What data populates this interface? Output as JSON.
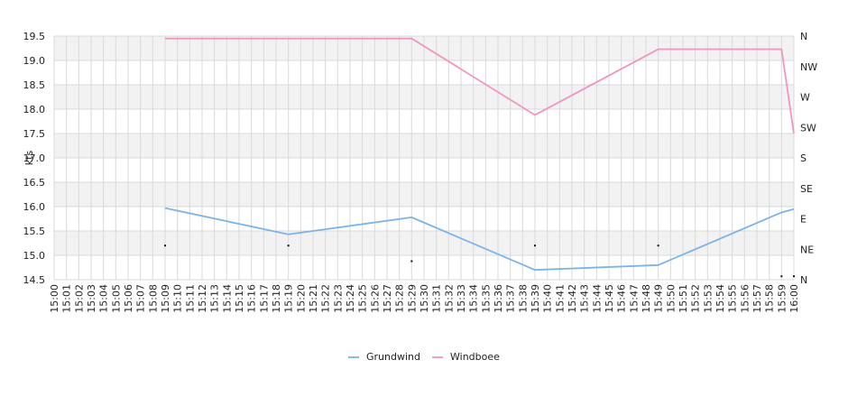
{
  "chart_data": {
    "type": "line",
    "ylabel": "kts",
    "ylim": [
      14.5,
      19.5
    ],
    "y_ticks": [
      "14.5",
      "15.0",
      "15.5",
      "16.0",
      "16.5",
      "17.0",
      "17.5",
      "18.0",
      "18.5",
      "19.0",
      "19.5"
    ],
    "x_labels": [
      "15:00",
      "15:01",
      "15:02",
      "15:03",
      "15:04",
      "15:05",
      "15:06",
      "15:07",
      "15:08",
      "15:09",
      "15:10",
      "15:11",
      "15:12",
      "15:13",
      "15:14",
      "15:15",
      "15:16",
      "15:17",
      "15:18",
      "15:19",
      "15:20",
      "15:21",
      "15:22",
      "15:23",
      "15:24",
      "15:25",
      "15:26",
      "15:27",
      "15:28",
      "15:29",
      "15:30",
      "15:31",
      "15:32",
      "15:33",
      "15:34",
      "15:35",
      "15:36",
      "15:37",
      "15:38",
      "15:39",
      "15:40",
      "15:41",
      "15:42",
      "15:43",
      "15:44",
      "15:45",
      "15:46",
      "15:47",
      "15:48",
      "15:49",
      "15:50",
      "15:51",
      "15:52",
      "15:53",
      "15:54",
      "15:55",
      "15:56",
      "15:57",
      "15:58",
      "15:59",
      "16:00"
    ],
    "right_axis_labels": [
      "N",
      "NE",
      "E",
      "SE",
      "S",
      "SW",
      "W",
      "NW",
      "N"
    ],
    "series": [
      {
        "name": "Grundwind",
        "color": "#7ab4ec",
        "x": [
          "15:09",
          "15:19",
          "15:29",
          "15:39",
          "15:49",
          "15:59",
          "16:00"
        ],
        "values": [
          15.97,
          15.43,
          15.78,
          14.7,
          14.8,
          15.88,
          15.95
        ]
      },
      {
        "name": "Windboee",
        "color": "#f096c0",
        "x": [
          "15:09",
          "15:19",
          "15:29",
          "15:39",
          "15:49",
          "15:59",
          "16:00"
        ],
        "values": [
          19.45,
          19.45,
          19.45,
          17.88,
          19.23,
          19.23,
          17.5
        ]
      }
    ],
    "direction_points": [
      {
        "x": "15:09",
        "value": 15.2
      },
      {
        "x": "15:19",
        "value": 15.2
      },
      {
        "x": "15:29",
        "value": 14.88
      },
      {
        "x": "15:39",
        "value": 15.2
      },
      {
        "x": "15:49",
        "value": 15.2
      },
      {
        "x": "15:59",
        "value": 14.57
      },
      {
        "x": "16:00",
        "value": 14.57
      }
    ],
    "grid": true,
    "legend_position": "bottom-center"
  }
}
